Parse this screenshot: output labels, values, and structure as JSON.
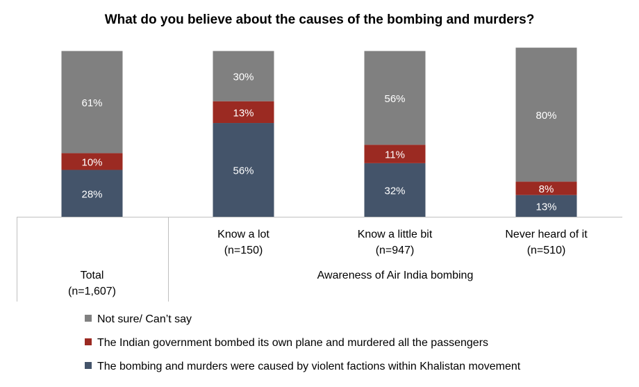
{
  "chart_data": {
    "type": "bar",
    "stacked": true,
    "title": "What do you believe about the causes of the bombing and murders?",
    "categories": [
      {
        "label": "Total",
        "n": "(n=1,607)"
      },
      {
        "label": "Know a lot",
        "n": "(n=150)"
      },
      {
        "label": "Know a little bit",
        "n": "(n=947)"
      },
      {
        "label": "Never heard of it",
        "n": "(n=510)"
      }
    ],
    "group_label": "Awareness of Air India bombing",
    "series": [
      {
        "name": "The bombing and murders were caused by violent factions within Khalistan movement",
        "color": "#44546a",
        "values": [
          28,
          56,
          32,
          13
        ],
        "labels": [
          "28%",
          "56%",
          "32%",
          "13%"
        ]
      },
      {
        "name": "The Indian government bombed its own plane and murdered all the passengers",
        "color": "#9b2a22",
        "values": [
          10,
          13,
          11,
          8
        ],
        "labels": [
          "10%",
          "13%",
          "11%",
          "8%"
        ]
      },
      {
        "name": "Not sure/ Can’t say",
        "color": "#808080",
        "values": [
          61,
          30,
          56,
          80
        ],
        "labels": [
          "61%",
          "30%",
          "56%",
          "80%"
        ]
      }
    ],
    "legend_order": [
      2,
      1,
      0
    ],
    "ylim": [
      0,
      100
    ],
    "grid": false,
    "legend_position": "bottom-left"
  }
}
